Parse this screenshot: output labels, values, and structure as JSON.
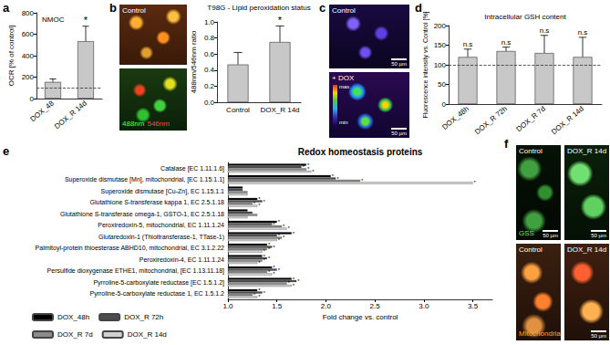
{
  "panel_labels": [
    "a",
    "b",
    "c",
    "d",
    "e",
    "f"
  ],
  "chart_data": [
    {
      "type": "bar",
      "title": "NMOC",
      "y_label": "OCR [% of control]",
      "categories": [
        "DOX_48",
        "DOX_R 14d"
      ],
      "values": [
        155,
        535
      ],
      "errors": [
        28,
        140
      ],
      "annotations": [
        null,
        "*"
      ],
      "reference_line": 100,
      "color": "#c8c8c8",
      "ylim": [
        0,
        800
      ],
      "yticks": [
        0,
        200,
        400,
        600,
        800
      ]
    },
    {
      "type": "bar",
      "title": "T98G - Lipid peroxidation status",
      "y_label": "488nm/546nm ratio",
      "categories": [
        "Control",
        "DOX_R 14d"
      ],
      "values": [
        0.47,
        0.75
      ],
      "errors": [
        0.15,
        0.2
      ],
      "annotations": [
        null,
        "*"
      ],
      "color": "#c8c8c8",
      "ylim": [
        0,
        1.0
      ],
      "yticks": [
        {
          "value": 0,
          "label": "0.0"
        },
        {
          "value": 0.2,
          "label": "0.2"
        },
        {
          "value": 0.4,
          "label": "0.4"
        },
        {
          "value": 0.6,
          "label": "0.6"
        },
        {
          "value": 0.8,
          "label": "0.8"
        },
        {
          "value": 1.0,
          "label": "1.0"
        }
      ]
    },
    {
      "type": "bar",
      "title": "Intracellular GSH content",
      "y_label": "Fluorescence intensity vs. Control [%]",
      "categories": [
        "DOX_48h",
        "DOX_R 72h",
        "DOX_R 7d",
        "DOX_R 14d"
      ],
      "values": [
        120,
        135,
        130,
        120
      ],
      "errors": [
        20,
        10,
        45,
        50
      ],
      "annotations": [
        "n.s",
        "n.s",
        "n.s",
        "n.s"
      ],
      "reference_line": 100,
      "color": "#c8c8c8",
      "ylim": [
        0,
        200
      ],
      "yticks": [
        0,
        50,
        100,
        150,
        200
      ]
    },
    {
      "type": "bar",
      "orientation": "horizontal",
      "title": "Redox homeostasis proteins",
      "x_label": "Fold change vs. control",
      "legend": "lower left",
      "categories": [
        "Catalase [EC 1.11.1.6]",
        "Superoxide dismutase [Mn], mitochondrial, [EC 1.15.1.1]",
        "Superoxide dismutase [Cu-Zn], EC 1.15.1.1",
        "Glutathione S-transferase kappa 1, EC 2.5.1.18",
        "Glutathione S-transferase omega-1, GSTO-1, EC 2.5.1.18",
        "Peroxiredoxin-5, mitochondrial, EC 1.11.1.24",
        "Glutaredoxin-1 (Thioltransferase-1, TTase-1)",
        "Palmitoyl-protein thioesterase ABHD10, mitochondrial, EC 3.1.2.22",
        "Peroxiredoxin-4, EC 1.11.1.24",
        "Persulfide dioxygenase ETHE1, mitochondrial, [EC 1.13.11.18]",
        "Pyrroline-5-carboxylate reductase [EC 1.5.1.2]",
        "Pyrroline-5-carboxylate reductase 1, EC 1.5.1.2"
      ],
      "series": [
        {
          "name": "DOX_48h",
          "color": "#000000",
          "values": [
            1.8,
            2.05,
            1.15,
            1.3,
            1.2,
            1.5,
            1.65,
            1.4,
            1.35,
            1.45,
            1.65,
            1.3
          ],
          "annotations": [
            "*",
            "*",
            null,
            "*",
            null,
            "*",
            "*",
            "*",
            "*",
            "*",
            "*",
            "*"
          ]
        },
        {
          "name": "DOX_R 72h",
          "color": "#4d4d4d",
          "values": [
            1.75,
            2.1,
            1.15,
            1.35,
            1.25,
            1.45,
            1.5,
            1.45,
            1.4,
            1.5,
            1.7,
            1.35
          ],
          "annotations": [
            "*",
            "*",
            null,
            "*",
            null,
            "*",
            "*",
            "*",
            "*",
            "*",
            "*",
            "*"
          ]
        },
        {
          "name": "DOX_R 7d",
          "color": "#8c8c8c",
          "values": [
            1.8,
            2.35,
            1.2,
            1.25,
            1.3,
            1.55,
            1.55,
            1.4,
            1.35,
            1.4,
            1.6,
            1.25
          ],
          "annotations": [
            "*",
            "*",
            null,
            "*",
            null,
            "*",
            "*",
            "*",
            "*",
            "*",
            "*",
            "*"
          ]
        },
        {
          "name": "DOX_R 14d",
          "color": "#d0d0d0",
          "values": [
            1.85,
            3.5,
            1.2,
            1.3,
            1.2,
            1.6,
            1.5,
            1.35,
            1.3,
            1.45,
            1.65,
            1.3
          ],
          "annotations": [
            "*",
            "*",
            null,
            "*",
            null,
            "*",
            "*",
            "*",
            "*",
            "*",
            "*",
            "*"
          ]
        }
      ],
      "xlim": [
        1.0,
        3.7
      ],
      "xticks": [
        {
          "value": 1.0,
          "label": "1.0"
        },
        {
          "value": 1.5,
          "label": "1.5"
        },
        {
          "value": 2.0,
          "label": "2.0"
        },
        {
          "value": 2.5,
          "label": "2.5"
        },
        {
          "value": 3.0,
          "label": "3.0"
        },
        {
          "value": 3.5,
          "label": "3.5"
        }
      ]
    }
  ],
  "images": [
    {
      "panel": "b",
      "tiles": [
        {
          "label": "Control"
        },
        {
          "stain": "488nm",
          "stain2": "546nm"
        }
      ]
    },
    {
      "panel": "c",
      "tiles": [
        {
          "label": "Control",
          "scale_bar": "50 µm"
        },
        {
          "label": "+ DOX",
          "scale_bar": "50 µm",
          "colorbar": [
            "max",
            "min"
          ]
        }
      ]
    },
    {
      "panel": "f",
      "tiles": [
        {
          "label": "Control",
          "stain": "GSS",
          "scale_bar": "50 µm"
        },
        {
          "label": "DOX_R 14d",
          "scale_bar": "50 µm"
        },
        {
          "label": "Control",
          "stain": "Mitochondria"
        },
        {
          "label": "DOX_R 14d",
          "scale_bar": "50 µm"
        }
      ]
    }
  ]
}
